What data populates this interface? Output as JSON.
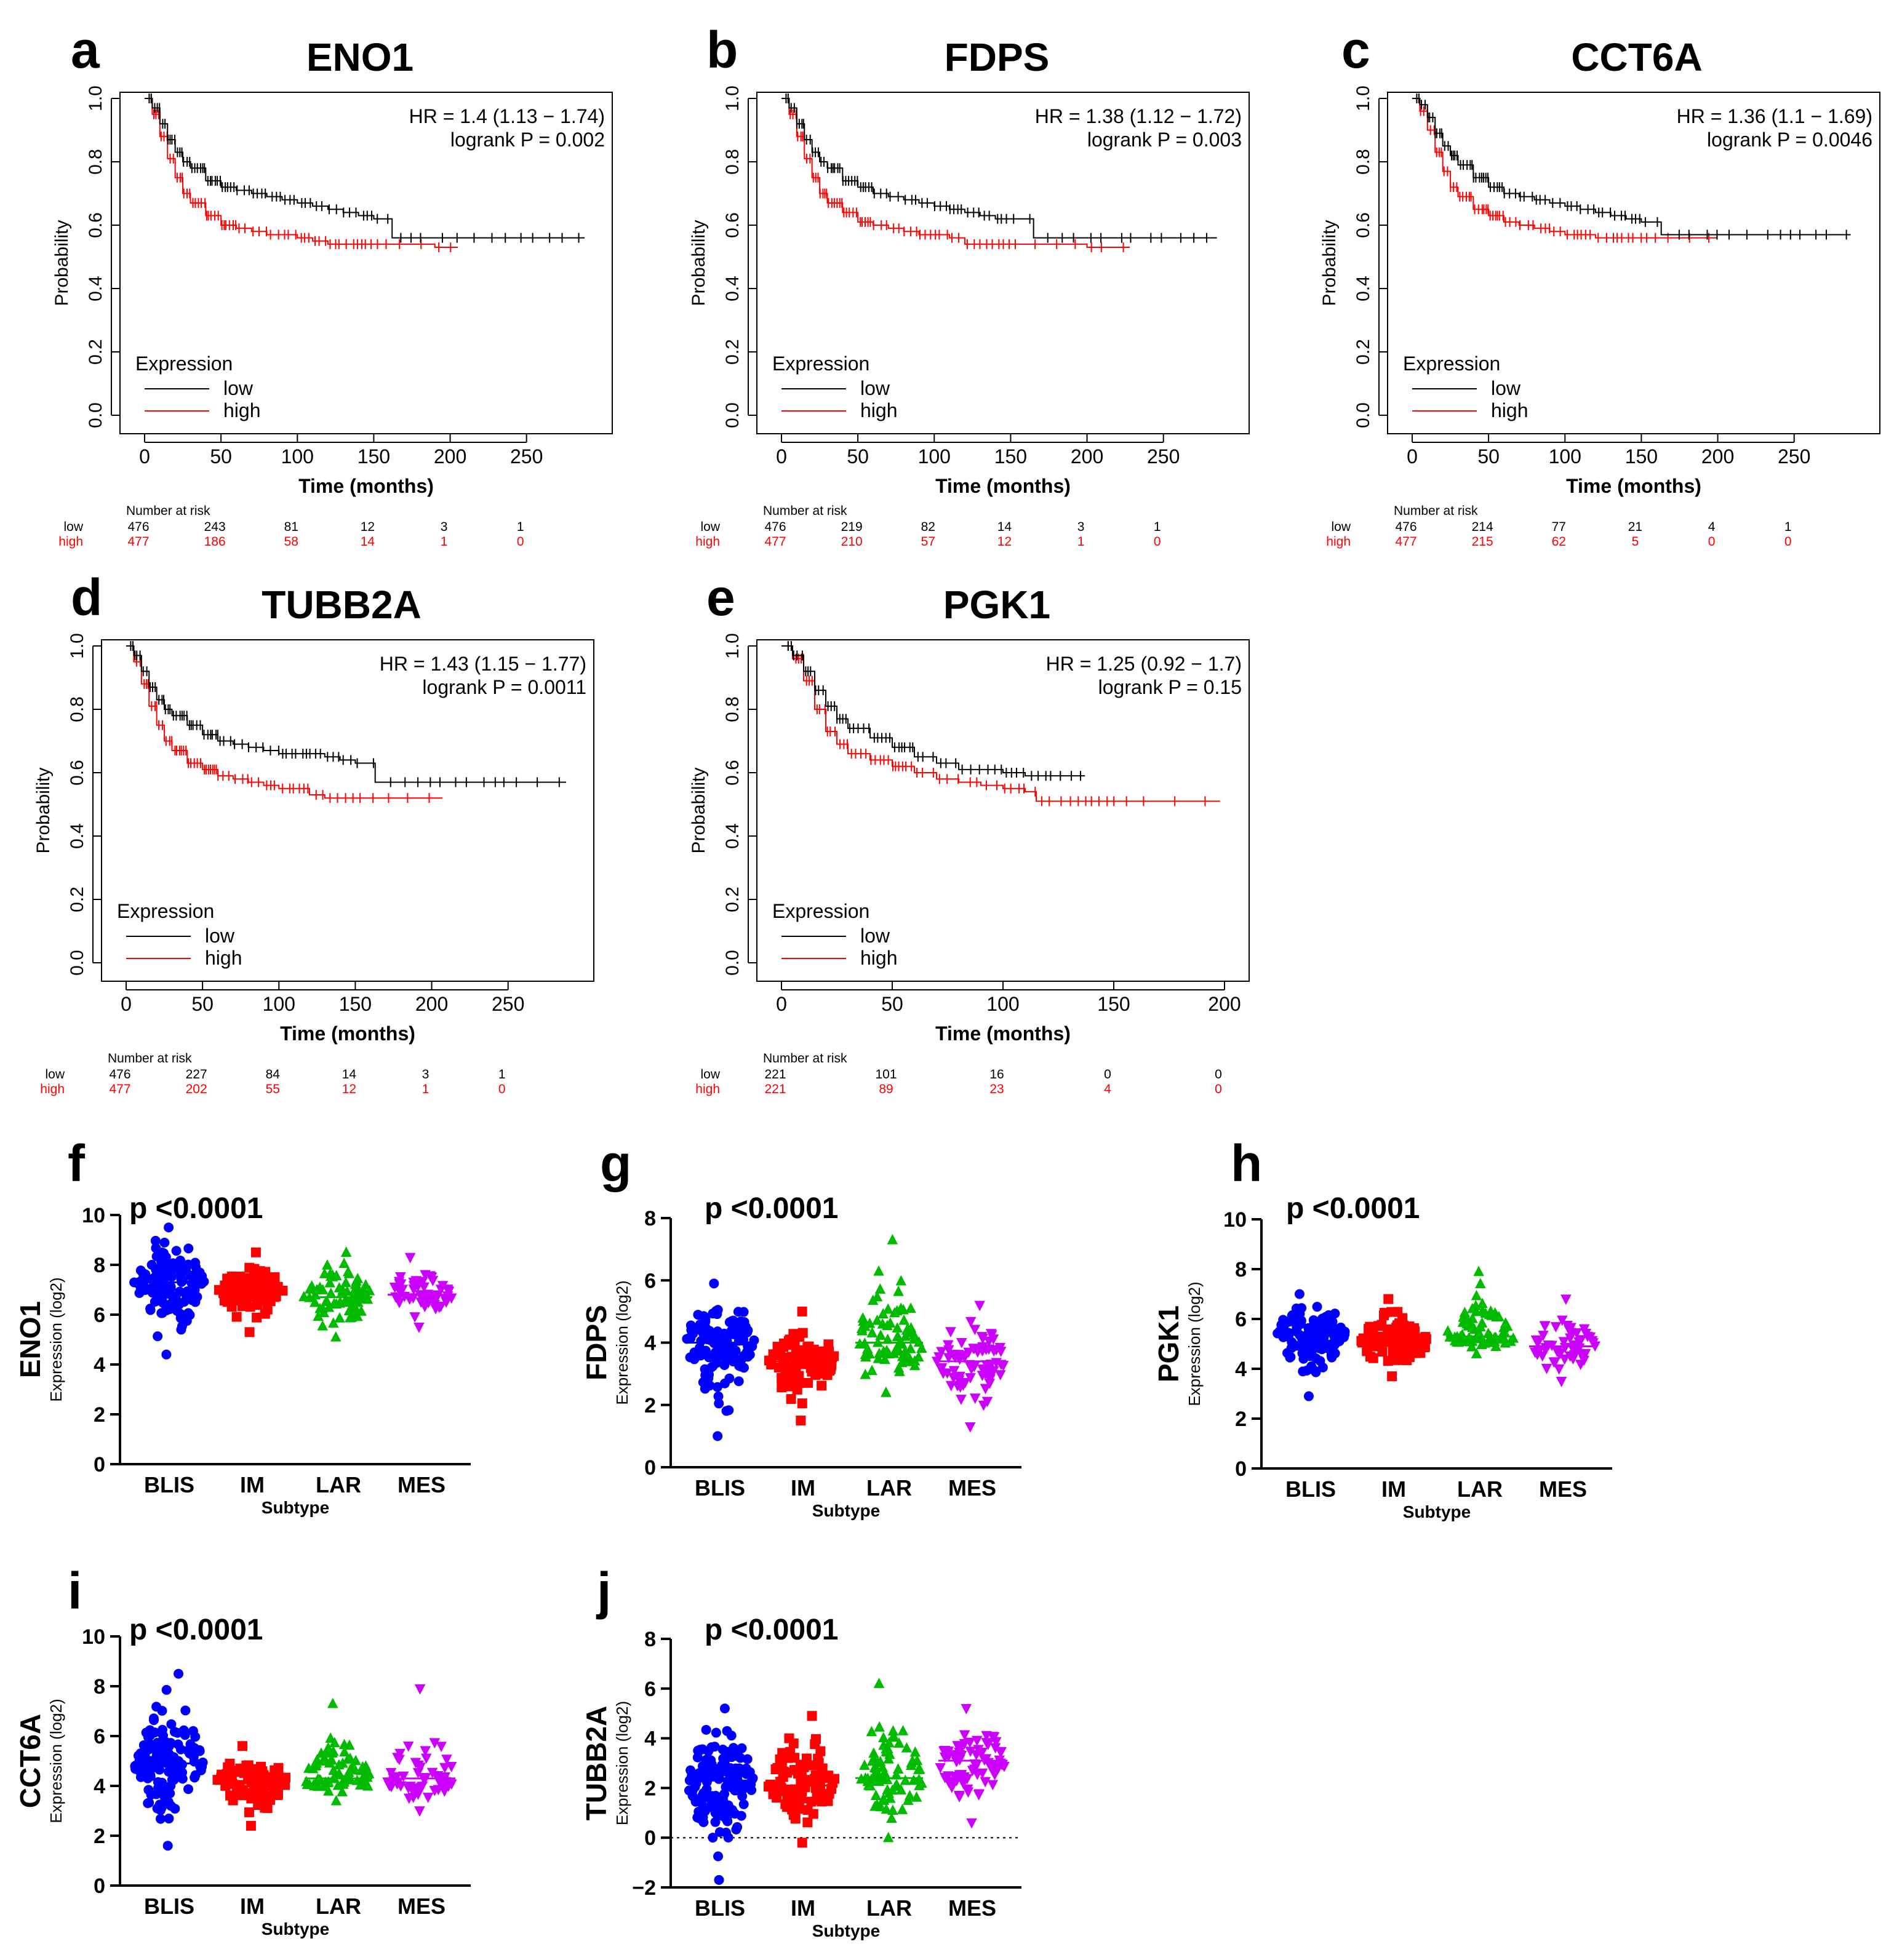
{
  "colors": {
    "low": "#000000",
    "high": "#ff0000",
    "BLIS": "#0000ff",
    "IM": "#ff0000",
    "LAR": "#00bb00",
    "MES": "#cc00ff"
  },
  "chart_data": [
    {
      "panel": "a",
      "type": "line",
      "title": "ENO1",
      "hr_text": "HR = 1.4 (1.13 − 1.74)",
      "p_text": "logrank P = 0.002",
      "xlabel": "Time (months)",
      "ylabel": "Probability",
      "xlim": [
        0,
        290
      ],
      "ylim": [
        0,
        1
      ],
      "xticks": [
        "0",
        "50",
        "100",
        "150",
        "200",
        "250"
      ],
      "yticks": [
        "0.0",
        "0.2",
        "0.4",
        "0.6",
        "0.8",
        "1.0"
      ],
      "legend_title": "Expression",
      "legend": [
        "low",
        "high"
      ],
      "risk_title": "Number at risk",
      "risk_times": [
        0,
        50,
        100,
        150,
        200,
        250
      ],
      "series": [
        {
          "name": "low",
          "x": [
            0,
            5,
            10,
            15,
            20,
            25,
            30,
            40,
            50,
            60,
            70,
            80,
            90,
            100,
            110,
            120,
            130,
            140,
            150,
            160,
            162,
            180,
            200,
            220,
            250,
            288
          ],
          "y": [
            1.0,
            0.97,
            0.92,
            0.87,
            0.83,
            0.8,
            0.78,
            0.74,
            0.72,
            0.71,
            0.7,
            0.69,
            0.68,
            0.67,
            0.66,
            0.65,
            0.64,
            0.63,
            0.62,
            0.62,
            0.56,
            0.56,
            0.56,
            0.56,
            0.56,
            0.56
          ],
          "risk": [
            "476",
            "243",
            "81",
            "12",
            "3",
            "1"
          ]
        },
        {
          "name": "high",
          "x": [
            0,
            5,
            10,
            15,
            20,
            25,
            30,
            40,
            50,
            60,
            70,
            80,
            90,
            100,
            110,
            120,
            130,
            150,
            170,
            190,
            205
          ],
          "y": [
            1.0,
            0.95,
            0.88,
            0.81,
            0.75,
            0.7,
            0.67,
            0.63,
            0.6,
            0.59,
            0.58,
            0.57,
            0.57,
            0.56,
            0.55,
            0.54,
            0.54,
            0.54,
            0.54,
            0.53,
            0.53
          ],
          "risk": [
            "477",
            "186",
            "58",
            "14",
            "1",
            "0"
          ]
        }
      ]
    },
    {
      "panel": "b",
      "type": "line",
      "title": "FDPS",
      "hr_text": "HR = 1.38 (1.12 − 1.72)",
      "p_text": "logrank P = 0.003",
      "xlabel": "Time (months)",
      "ylabel": "Probability",
      "xlim": [
        0,
        290
      ],
      "ylim": [
        0,
        1
      ],
      "xticks": [
        "0",
        "50",
        "100",
        "150",
        "200",
        "250"
      ],
      "yticks": [
        "0.0",
        "0.2",
        "0.4",
        "0.6",
        "0.8",
        "1.0"
      ],
      "legend_title": "Expression",
      "legend": [
        "low",
        "high"
      ],
      "risk_title": "Number at risk",
      "risk_times": [
        0,
        50,
        100,
        150,
        200,
        250
      ],
      "series": [
        {
          "name": "low",
          "x": [
            0,
            5,
            10,
            15,
            20,
            25,
            30,
            40,
            50,
            60,
            70,
            80,
            90,
            100,
            110,
            120,
            130,
            140,
            150,
            163,
            165,
            180,
            200,
            285
          ],
          "y": [
            1.0,
            0.97,
            0.92,
            0.87,
            0.83,
            0.8,
            0.78,
            0.74,
            0.72,
            0.7,
            0.69,
            0.68,
            0.67,
            0.66,
            0.65,
            0.64,
            0.63,
            0.62,
            0.62,
            0.62,
            0.56,
            0.56,
            0.56,
            0.56
          ],
          "risk": [
            "476",
            "219",
            "82",
            "14",
            "3",
            "1"
          ]
        },
        {
          "name": "high",
          "x": [
            0,
            5,
            10,
            15,
            20,
            25,
            30,
            40,
            50,
            60,
            70,
            80,
            90,
            100,
            110,
            115,
            120,
            140,
            160,
            200,
            228
          ],
          "y": [
            1.0,
            0.95,
            0.88,
            0.81,
            0.75,
            0.7,
            0.67,
            0.64,
            0.61,
            0.6,
            0.59,
            0.58,
            0.57,
            0.57,
            0.56,
            0.56,
            0.54,
            0.54,
            0.54,
            0.53,
            0.53
          ],
          "risk": [
            "477",
            "210",
            "57",
            "12",
            "1",
            "0"
          ]
        }
      ]
    },
    {
      "panel": "c",
      "type": "line",
      "title": "CCT6A",
      "hr_text": "HR = 1.36 (1.1 − 1.69)",
      "p_text": "logrank P = 0.0046",
      "xlabel": "Time (months)",
      "ylabel": "Probability",
      "xlim": [
        0,
        290
      ],
      "ylim": [
        0,
        1
      ],
      "xticks": [
        "0",
        "50",
        "100",
        "150",
        "200",
        "250"
      ],
      "yticks": [
        "0.0",
        "0.2",
        "0.4",
        "0.6",
        "0.8",
        "1.0"
      ],
      "legend_title": "Expression",
      "legend": [
        "low",
        "high"
      ],
      "risk_title": "Number at risk",
      "risk_times": [
        0,
        50,
        100,
        150,
        200,
        250
      ],
      "series": [
        {
          "name": "low",
          "x": [
            0,
            5,
            10,
            15,
            20,
            25,
            30,
            40,
            50,
            60,
            70,
            80,
            90,
            100,
            110,
            120,
            130,
            140,
            150,
            160,
            163,
            180,
            200,
            220,
            250,
            287
          ],
          "y": [
            1.0,
            0.98,
            0.94,
            0.89,
            0.85,
            0.82,
            0.79,
            0.75,
            0.72,
            0.7,
            0.69,
            0.68,
            0.67,
            0.66,
            0.65,
            0.64,
            0.63,
            0.62,
            0.61,
            0.61,
            0.57,
            0.57,
            0.57,
            0.57,
            0.57,
            0.57
          ],
          "risk": [
            "476",
            "214",
            "77",
            "21",
            "4",
            "1"
          ]
        },
        {
          "name": "high",
          "x": [
            0,
            5,
            10,
            15,
            20,
            25,
            30,
            40,
            50,
            60,
            70,
            80,
            90,
            100,
            110,
            120,
            140,
            160,
            180,
            200
          ],
          "y": [
            1.0,
            0.96,
            0.9,
            0.83,
            0.77,
            0.72,
            0.69,
            0.65,
            0.63,
            0.61,
            0.6,
            0.59,
            0.58,
            0.57,
            0.57,
            0.56,
            0.56,
            0.56,
            0.56,
            0.56
          ],
          "risk": [
            "477",
            "215",
            "62",
            "5",
            "0",
            "0"
          ]
        }
      ]
    },
    {
      "panel": "d",
      "type": "line",
      "title": "TUBB2A",
      "hr_text": "HR = 1.43 (1.15 − 1.77)",
      "p_text": "logrank P = 0.0011",
      "xlabel": "Time (months)",
      "ylabel": "Probability",
      "xlim": [
        0,
        290
      ],
      "ylim": [
        0,
        1
      ],
      "xticks": [
        "0",
        "50",
        "100",
        "150",
        "200",
        "250"
      ],
      "yticks": [
        "0.0",
        "0.2",
        "0.4",
        "0.6",
        "0.8",
        "1.0"
      ],
      "legend_title": "Expression",
      "legend": [
        "low",
        "high"
      ],
      "risk_title": "Number at risk",
      "risk_times": [
        0,
        50,
        100,
        150,
        200,
        250
      ],
      "series": [
        {
          "name": "low",
          "x": [
            0,
            5,
            10,
            15,
            20,
            25,
            30,
            40,
            50,
            60,
            70,
            80,
            90,
            100,
            110,
            120,
            130,
            140,
            150,
            160,
            163,
            180,
            200,
            220,
            250,
            288
          ],
          "y": [
            1.0,
            0.97,
            0.92,
            0.87,
            0.83,
            0.8,
            0.78,
            0.75,
            0.72,
            0.7,
            0.69,
            0.68,
            0.67,
            0.66,
            0.66,
            0.66,
            0.65,
            0.64,
            0.63,
            0.63,
            0.57,
            0.57,
            0.57,
            0.57,
            0.57,
            0.57
          ],
          "risk": [
            "476",
            "227",
            "84",
            "14",
            "3",
            "1"
          ]
        },
        {
          "name": "high",
          "x": [
            0,
            5,
            10,
            15,
            20,
            25,
            30,
            40,
            50,
            60,
            70,
            80,
            90,
            100,
            110,
            120,
            130,
            150,
            170,
            190,
            207
          ],
          "y": [
            1.0,
            0.95,
            0.88,
            0.81,
            0.75,
            0.7,
            0.67,
            0.63,
            0.61,
            0.59,
            0.58,
            0.57,
            0.56,
            0.55,
            0.55,
            0.53,
            0.52,
            0.52,
            0.52,
            0.52,
            0.52
          ],
          "risk": [
            "477",
            "202",
            "55",
            "12",
            "1",
            "0"
          ]
        }
      ]
    },
    {
      "panel": "e",
      "type": "line",
      "title": "PGK1",
      "hr_text": "HR = 1.25 (0.92 − 1.7)",
      "p_text": "logrank P = 0.15",
      "xlabel": "Time (months)",
      "ylabel": "Probability",
      "xlim": [
        0,
        200
      ],
      "ylim": [
        0,
        1
      ],
      "xticks": [
        "0",
        "50",
        "100",
        "150",
        "200"
      ],
      "yticks": [
        "0.0",
        "0.2",
        "0.4",
        "0.6",
        "0.8",
        "1.0"
      ],
      "legend_title": "Expression",
      "legend": [
        "low",
        "high"
      ],
      "risk_title": "Number at risk",
      "risk_times": [
        0,
        50,
        100,
        150,
        200
      ],
      "series": [
        {
          "name": "low",
          "x": [
            0,
            5,
            10,
            15,
            20,
            25,
            30,
            40,
            50,
            60,
            70,
            80,
            90,
            100,
            110,
            120,
            137
          ],
          "y": [
            1.0,
            0.97,
            0.92,
            0.86,
            0.81,
            0.77,
            0.74,
            0.71,
            0.68,
            0.65,
            0.63,
            0.61,
            0.61,
            0.6,
            0.59,
            0.59,
            0.59
          ],
          "risk": [
            "221",
            "101",
            "16",
            "0",
            "0"
          ]
        },
        {
          "name": "high",
          "x": [
            0,
            5,
            10,
            15,
            20,
            25,
            30,
            40,
            50,
            60,
            70,
            80,
            90,
            100,
            110,
            115,
            120,
            150,
            170,
            198
          ],
          "y": [
            1.0,
            0.96,
            0.89,
            0.8,
            0.73,
            0.69,
            0.66,
            0.64,
            0.62,
            0.6,
            0.58,
            0.57,
            0.56,
            0.55,
            0.54,
            0.51,
            0.51,
            0.51,
            0.51,
            0.51
          ],
          "risk": [
            "221",
            "89",
            "23",
            "4",
            "0"
          ]
        }
      ]
    },
    {
      "panel": "f",
      "type": "scatter",
      "gene": "ENO1",
      "ylabel_sub": "Expression (log2)",
      "xlabel": "Subtype",
      "p_text": "p <0.0001",
      "ylim": [
        0,
        10
      ],
      "yticks": [
        "0",
        "2",
        "4",
        "6",
        "8",
        "10"
      ],
      "categories": [
        "BLIS",
        "IM",
        "LAR",
        "MES"
      ],
      "markers": [
        "circle",
        "square",
        "triangle",
        "triangle-down"
      ],
      "groups": [
        {
          "name": "BLIS",
          "n": 130,
          "median": 7.3,
          "min": 4.4,
          "max": 9.5
        },
        {
          "name": "IM",
          "n": 90,
          "median": 6.9,
          "min": 5.3,
          "max": 8.5
        },
        {
          "name": "LAR",
          "n": 75,
          "median": 6.7,
          "min": 5.1,
          "max": 8.5
        },
        {
          "name": "MES",
          "n": 55,
          "median": 6.8,
          "min": 5.5,
          "max": 8.3
        }
      ]
    },
    {
      "panel": "g",
      "type": "scatter",
      "gene": "FDPS",
      "ylabel_sub": "Expression (log2)",
      "xlabel": "Subtype",
      "p_text": "p <0.0001",
      "ylim": [
        0,
        8
      ],
      "yticks": [
        "0",
        "2",
        "4",
        "6",
        "8"
      ],
      "categories": [
        "BLIS",
        "IM",
        "LAR",
        "MES"
      ],
      "markers": [
        "circle",
        "square",
        "triangle",
        "triangle-down"
      ],
      "groups": [
        {
          "name": "BLIS",
          "n": 130,
          "median": 4.0,
          "min": 1.0,
          "max": 5.9
        },
        {
          "name": "IM",
          "n": 90,
          "median": 3.4,
          "min": 1.5,
          "max": 5.0
        },
        {
          "name": "LAR",
          "n": 75,
          "median": 4.0,
          "min": 2.4,
          "max": 7.3
        },
        {
          "name": "MES",
          "n": 80,
          "median": 3.4,
          "min": 1.3,
          "max": 5.2
        }
      ]
    },
    {
      "panel": "h",
      "type": "scatter",
      "gene": "PGK1",
      "ylabel_sub": "Expression (log2)",
      "xlabel": "Subtype",
      "p_text": "p <0.0001",
      "ylim": [
        0,
        10
      ],
      "yticks": [
        "0",
        "2",
        "4",
        "6",
        "8",
        "10"
      ],
      "categories": [
        "BLIS",
        "IM",
        "LAR",
        "MES"
      ],
      "markers": [
        "circle",
        "square",
        "triangle",
        "triangle-down"
      ],
      "groups": [
        {
          "name": "BLIS",
          "n": 130,
          "median": 5.4,
          "min": 2.9,
          "max": 7.0
        },
        {
          "name": "IM",
          "n": 90,
          "median": 5.1,
          "min": 3.7,
          "max": 6.8
        },
        {
          "name": "LAR",
          "n": 75,
          "median": 5.3,
          "min": 4.6,
          "max": 7.9
        },
        {
          "name": "MES",
          "n": 55,
          "median": 4.9,
          "min": 3.5,
          "max": 6.8
        }
      ]
    },
    {
      "panel": "i",
      "type": "scatter",
      "gene": "CCT6A",
      "ylabel_sub": "Expression (log2)",
      "xlabel": "Subtype",
      "p_text": "p <0.0001",
      "ylim": [
        0,
        10
      ],
      "yticks": [
        "0",
        "2",
        "4",
        "6",
        "8",
        "10"
      ],
      "categories": [
        "BLIS",
        "IM",
        "LAR",
        "MES"
      ],
      "markers": [
        "circle",
        "square",
        "triangle",
        "triangle-down"
      ],
      "groups": [
        {
          "name": "BLIS",
          "n": 130,
          "median": 4.9,
          "min": 1.6,
          "max": 8.5
        },
        {
          "name": "IM",
          "n": 90,
          "median": 4.2,
          "min": 2.4,
          "max": 5.6
        },
        {
          "name": "LAR",
          "n": 75,
          "median": 4.3,
          "min": 3.4,
          "max": 7.3
        },
        {
          "name": "MES",
          "n": 55,
          "median": 4.3,
          "min": 3.0,
          "max": 7.9
        }
      ]
    },
    {
      "panel": "j",
      "type": "scatter",
      "gene": "TUBB2A",
      "ylabel_sub": "Expression (log2)",
      "xlabel": "Subtype",
      "p_text": "p <0.0001",
      "ylim": [
        -2,
        8
      ],
      "yticks": [
        "−2",
        "0",
        "2",
        "4",
        "6",
        "8"
      ],
      "zero_line": true,
      "categories": [
        "BLIS",
        "IM",
        "LAR",
        "MES"
      ],
      "markers": [
        "circle",
        "square",
        "triangle",
        "triangle-down"
      ],
      "groups": [
        {
          "name": "BLIS",
          "n": 150,
          "median": 2.3,
          "min": -1.7,
          "max": 5.2
        },
        {
          "name": "IM",
          "n": 95,
          "median": 2.1,
          "min": -0.2,
          "max": 4.9
        },
        {
          "name": "LAR",
          "n": 80,
          "median": 2.4,
          "min": 0.0,
          "max": 6.2
        },
        {
          "name": "MES",
          "n": 80,
          "median": 3.1,
          "min": 0.6,
          "max": 5.2
        }
      ]
    }
  ]
}
